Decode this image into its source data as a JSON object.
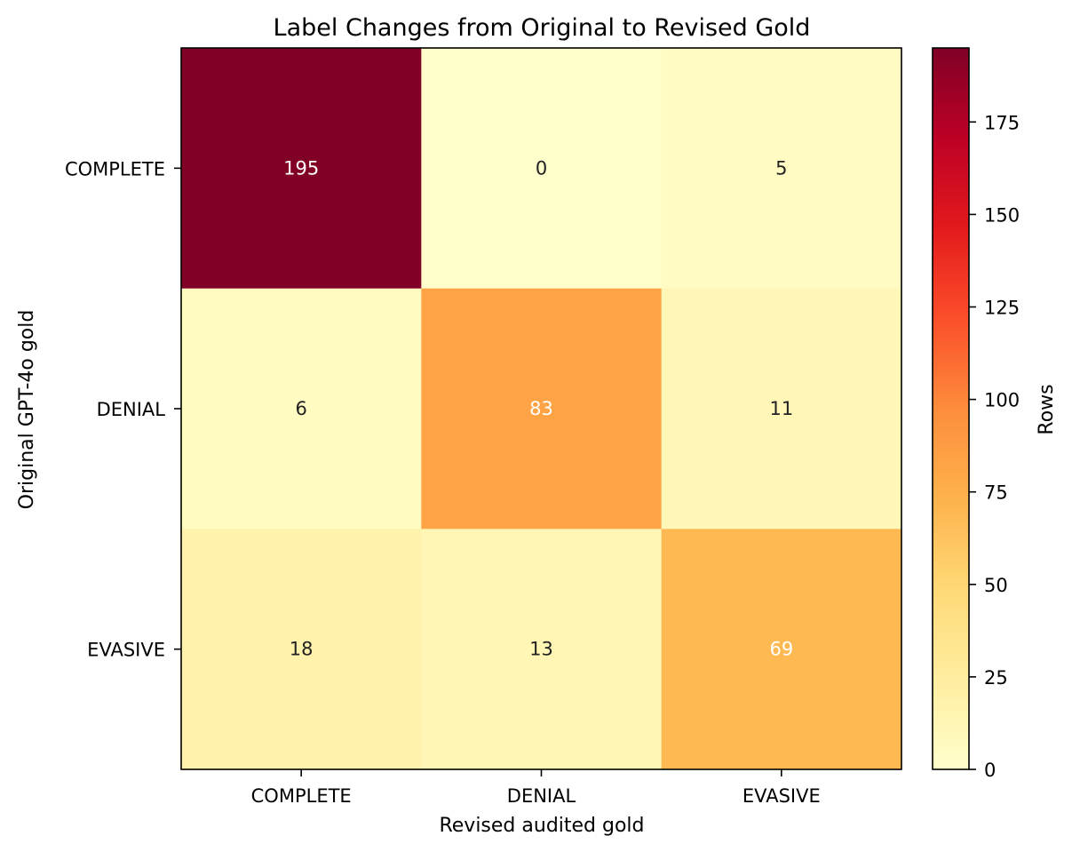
{
  "chart_data": {
    "type": "heatmap",
    "title": "Label Changes from Original to Revised Gold",
    "xlabel": "Revised audited gold",
    "ylabel": "Original GPT-4o gold",
    "x_categories": [
      "COMPLETE",
      "DENIAL",
      "EVASIVE"
    ],
    "y_categories": [
      "COMPLETE",
      "DENIAL",
      "EVASIVE"
    ],
    "values": [
      [
        195,
        0,
        5
      ],
      [
        6,
        83,
        11
      ],
      [
        18,
        13,
        69
      ]
    ],
    "colormap": "YlOrRd",
    "colorbar": {
      "label": "Rows",
      "range": [
        0,
        195
      ],
      "ticks": [
        0,
        25,
        50,
        75,
        100,
        125,
        150,
        175
      ]
    },
    "grid": false
  }
}
